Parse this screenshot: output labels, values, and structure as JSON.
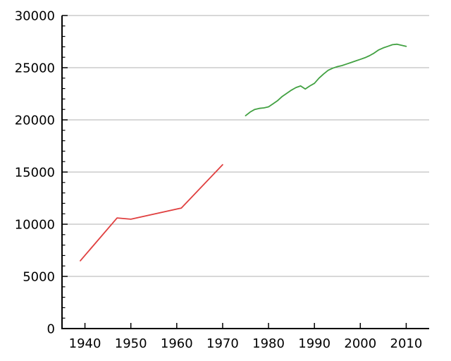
{
  "chart_data": {
    "type": "line",
    "title": "",
    "subtitle": "",
    "xlabel": "",
    "ylabel": "",
    "legend": "none",
    "xlim": [
      1935,
      2015
    ],
    "ylim": [
      0,
      30000
    ],
    "x_tick_values": [
      1940,
      1950,
      1960,
      1970,
      1980,
      1990,
      2000,
      2010
    ],
    "x_tick_labels": [
      "1940",
      "1950",
      "1960",
      "1970",
      "1980",
      "1990",
      "2000",
      "2010"
    ],
    "y_tick_values": [
      0,
      5000,
      10000,
      15000,
      20000,
      25000,
      30000
    ],
    "y_tick_labels": [
      "0",
      "5000",
      "10000",
      "15000",
      "20000",
      "25000",
      "30000"
    ],
    "y_minor_tick_step": 1000,
    "grid": {
      "horizontal_major": true,
      "vertical": false
    },
    "colors": {
      "axis": "#000000",
      "grid": "#b0b0b0",
      "background": "#ffffff",
      "tick_label": "#000000"
    },
    "series": [
      {
        "id": "red-series",
        "color": "#e04040",
        "points": [
          [
            1939,
            6500
          ],
          [
            1947,
            10600
          ],
          [
            1950,
            10480
          ],
          [
            1961,
            11550
          ],
          [
            1970,
            15700
          ]
        ]
      },
      {
        "id": "green-series",
        "color": "#42a142",
        "points": [
          [
            1975,
            20400
          ],
          [
            1976,
            20750
          ],
          [
            1977,
            21000
          ],
          [
            1978,
            21100
          ],
          [
            1979,
            21150
          ],
          [
            1980,
            21250
          ],
          [
            1981,
            21550
          ],
          [
            1982,
            21850
          ],
          [
            1983,
            22250
          ],
          [
            1984,
            22550
          ],
          [
            1985,
            22850
          ],
          [
            1986,
            23100
          ],
          [
            1987,
            23250
          ],
          [
            1988,
            22950
          ],
          [
            1989,
            23250
          ],
          [
            1990,
            23500
          ],
          [
            1991,
            24000
          ],
          [
            1992,
            24400
          ],
          [
            1993,
            24750
          ],
          [
            1994,
            24950
          ],
          [
            1995,
            25100
          ],
          [
            1996,
            25200
          ],
          [
            1997,
            25350
          ],
          [
            1998,
            25500
          ],
          [
            1999,
            25650
          ],
          [
            2000,
            25800
          ],
          [
            2001,
            25950
          ],
          [
            2002,
            26150
          ],
          [
            2003,
            26400
          ],
          [
            2004,
            26700
          ],
          [
            2005,
            26900
          ],
          [
            2006,
            27050
          ],
          [
            2007,
            27200
          ],
          [
            2008,
            27250
          ],
          [
            2009,
            27150
          ],
          [
            2010,
            27050
          ]
        ]
      }
    ]
  }
}
